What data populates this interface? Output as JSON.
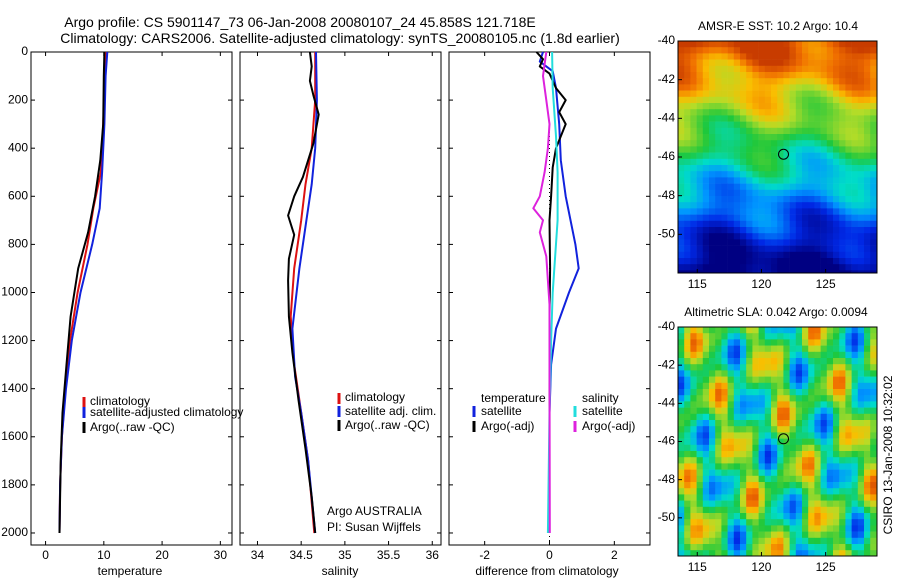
{
  "header": {
    "line1": "Argo profile: CS 5901147_73 06-Jan-2008 20080107_24 45.858S 121.718E",
    "line2": "Climatology: CARS2006. Satellite-adjusted climatology: synTS_20080105.nc (1.8d earlier)"
  },
  "side_label": "CSIRO 13-Jan-2008 10:32:02",
  "colors": {
    "climatology": "#dd1111",
    "satellite": "#1122dd",
    "argo": "#000000",
    "salinity_satellite": "#22dddd",
    "salinity_argo": "#dd22dd"
  },
  "chart_data": [
    {
      "type": "line",
      "xlabel": "temperature",
      "xlim": [
        -2.5,
        32
      ],
      "xticks": [
        0,
        10,
        20,
        30
      ],
      "ylim": [
        2050,
        0
      ],
      "yticks": [
        0,
        200,
        400,
        600,
        800,
        1000,
        1200,
        1400,
        1600,
        1800,
        2000
      ],
      "legend": [
        "climatology",
        "satellite-adjusted climatology",
        "Argo(..raw -QC)"
      ],
      "series": [
        {
          "name": "climatology",
          "color": "#dd1111",
          "points": [
            [
              10.3,
              0
            ],
            [
              10.2,
              100
            ],
            [
              9.9,
              300
            ],
            [
              9.5,
              500
            ],
            [
              8.2,
              650
            ],
            [
              7.2,
              800
            ],
            [
              5.5,
              1000
            ],
            [
              4.2,
              1200
            ],
            [
              3.4,
              1400
            ],
            [
              2.8,
              1600
            ],
            [
              2.5,
              1800
            ],
            [
              2.4,
              2000
            ]
          ]
        },
        {
          "name": "satellite-adjusted climatology",
          "color": "#1122dd",
          "points": [
            [
              10.6,
              0
            ],
            [
              10.3,
              100
            ],
            [
              10.1,
              300
            ],
            [
              9.7,
              500
            ],
            [
              9.3,
              650
            ],
            [
              8.0,
              800
            ],
            [
              6.0,
              1000
            ],
            [
              4.5,
              1200
            ],
            [
              3.5,
              1400
            ],
            [
              2.8,
              1600
            ],
            [
              2.5,
              1800
            ],
            [
              2.4,
              2000
            ]
          ]
        },
        {
          "name": "Argo(..raw -QC)",
          "color": "#000000",
          "points": [
            [
              10.1,
              0
            ],
            [
              10.0,
              100
            ],
            [
              9.9,
              300
            ],
            [
              9.4,
              450
            ],
            [
              8.5,
              600
            ],
            [
              7.3,
              750
            ],
            [
              5.6,
              900
            ],
            [
              4.3,
              1100
            ],
            [
              3.6,
              1300
            ],
            [
              2.9,
              1500
            ],
            [
              2.6,
              1700
            ],
            [
              2.4,
              2000
            ]
          ]
        }
      ]
    },
    {
      "type": "line",
      "xlabel": "salinity",
      "xlim": [
        33.8,
        36.1
      ],
      "xticks": [
        34,
        34.5,
        35,
        35.5,
        36
      ],
      "ylim": [
        2050,
        0
      ],
      "legend": [
        "climatology",
        "satellite adj. clim.",
        "Argo(..raw -QC)"
      ],
      "annotation": [
        "Argo AUSTRALIA",
        "PI: Susan Wijffels"
      ],
      "series": [
        {
          "name": "climatology",
          "color": "#dd1111",
          "points": [
            [
              34.66,
              0
            ],
            [
              34.66,
              200
            ],
            [
              34.62,
              400
            ],
            [
              34.55,
              550
            ],
            [
              34.5,
              700
            ],
            [
              34.42,
              900
            ],
            [
              34.38,
              1100
            ],
            [
              34.42,
              1300
            ],
            [
              34.5,
              1500
            ],
            [
              34.58,
              1700
            ],
            [
              34.65,
              2000
            ]
          ]
        },
        {
          "name": "satellite adj. clim.",
          "color": "#1122dd",
          "points": [
            [
              34.67,
              0
            ],
            [
              34.68,
              200
            ],
            [
              34.66,
              400
            ],
            [
              34.62,
              550
            ],
            [
              34.56,
              700
            ],
            [
              34.48,
              900
            ],
            [
              34.4,
              1150
            ],
            [
              34.43,
              1350
            ],
            [
              34.5,
              1500
            ],
            [
              34.58,
              1700
            ],
            [
              34.66,
              2000
            ]
          ]
        },
        {
          "name": "Argo(..raw -QC)",
          "color": "#000000",
          "points": [
            [
              34.6,
              0
            ],
            [
              34.62,
              60
            ],
            [
              34.6,
              120
            ],
            [
              34.64,
              180
            ],
            [
              34.7,
              260
            ],
            [
              34.64,
              380
            ],
            [
              34.52,
              520
            ],
            [
              34.42,
              600
            ],
            [
              34.35,
              680
            ],
            [
              34.42,
              760
            ],
            [
              34.36,
              860
            ],
            [
              34.35,
              950
            ],
            [
              34.36,
              1100
            ],
            [
              34.4,
              1250
            ],
            [
              34.47,
              1450
            ],
            [
              34.55,
              1650
            ],
            [
              34.62,
              1850
            ],
            [
              34.66,
              2000
            ]
          ]
        }
      ]
    },
    {
      "type": "line",
      "xlabel": "difference from climatology",
      "xlim": [
        -3.1,
        3.1
      ],
      "xticks": [
        -2,
        0,
        2
      ],
      "ylim": [
        2050,
        0
      ],
      "legend_groups": [
        {
          "title": "temperature",
          "entries": [
            "satellite",
            "Argo(-adj)"
          ]
        },
        {
          "title": "salinity",
          "entries": [
            "satellite",
            "Argo(-adj)"
          ]
        }
      ],
      "series": [
        {
          "name": "temperature satellite",
          "color": "#1122dd",
          "points": [
            [
              -0.2,
              0
            ],
            [
              -0.3,
              40
            ],
            [
              0.1,
              80
            ],
            [
              0.2,
              150
            ],
            [
              0.3,
              300
            ],
            [
              0.35,
              450
            ],
            [
              0.5,
              600
            ],
            [
              0.8,
              800
            ],
            [
              0.9,
              900
            ],
            [
              0.6,
              1000
            ],
            [
              0.2,
              1150
            ],
            [
              0.05,
              1300
            ],
            [
              0,
              1500
            ],
            [
              0,
              2000
            ]
          ]
        },
        {
          "name": "temperature Argo(-adj)",
          "color": "#000000",
          "points": [
            [
              -0.4,
              0
            ],
            [
              -0.2,
              30
            ],
            [
              -0.3,
              60
            ],
            [
              0,
              90
            ],
            [
              0.2,
              150
            ],
            [
              0.5,
              200
            ],
            [
              0.3,
              250
            ],
            [
              0.5,
              300
            ],
            [
              0.2,
              400
            ],
            [
              0.1,
              480
            ],
            [
              0.05,
              600
            ],
            [
              0,
              700
            ],
            [
              0.02,
              900
            ],
            [
              0,
              1100
            ],
            [
              0,
              2000
            ]
          ]
        },
        {
          "name": "salinity satellite",
          "color": "#22dddd",
          "points": [
            [
              0.08,
              0
            ],
            [
              0.1,
              150
            ],
            [
              0.2,
              350
            ],
            [
              0.25,
              500
            ],
            [
              0.25,
              700
            ],
            [
              0.1,
              1000
            ],
            [
              0.05,
              1200
            ],
            [
              0,
              1500
            ],
            [
              -0.05,
              2000
            ]
          ]
        },
        {
          "name": "salinity Argo(-adj)",
          "color": "#dd22dd",
          "points": [
            [
              -0.1,
              0
            ],
            [
              -0.2,
              100
            ],
            [
              -0.1,
              200
            ],
            [
              0,
              300
            ],
            [
              -0.05,
              400
            ],
            [
              -0.15,
              500
            ],
            [
              -0.3,
              600
            ],
            [
              -0.5,
              650
            ],
            [
              -0.2,
              700
            ],
            [
              -0.3,
              750
            ],
            [
              -0.1,
              850
            ],
            [
              -0.05,
              950
            ],
            [
              0,
              1050
            ],
            [
              0,
              1300
            ],
            [
              0.01,
              2000
            ]
          ]
        }
      ]
    },
    {
      "type": "heatmap",
      "title": "AMSR-E SST: 10.2 Argo: 10.4",
      "xlim": [
        113.5,
        129
      ],
      "xticks": [
        115,
        120,
        125
      ],
      "ylim": [
        -52,
        -40
      ],
      "yticks": [
        -40,
        -42,
        -44,
        -46,
        -48,
        -50
      ],
      "marker": {
        "lon": 121.718,
        "lat": -45.858
      }
    },
    {
      "type": "heatmap",
      "title": "Altimetric SLA: 0.042 Argo: 0.0094",
      "xlim": [
        113.5,
        129
      ],
      "xticks": [
        115,
        120,
        125
      ],
      "ylim": [
        -52,
        -40
      ],
      "yticks": [
        -40,
        -42,
        -44,
        -46,
        -48,
        -50
      ],
      "marker": {
        "lon": 121.718,
        "lat": -45.858
      }
    }
  ]
}
